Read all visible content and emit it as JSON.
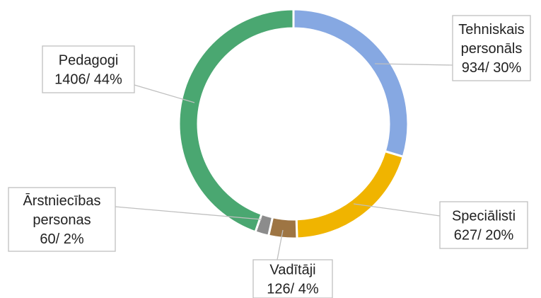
{
  "chart_data": {
    "type": "donut",
    "categories": [
      "Tehniskais personāls",
      "Speciālisti",
      "Vadītāji",
      "Ārstniecības personas",
      "Pedagogi"
    ],
    "values": [
      934,
      627,
      126,
      60,
      1406
    ],
    "value_labels": [
      "934/ 30%",
      "627/ 20%",
      "126/ 4%",
      "60/ 2%",
      "1406/ 44%"
    ],
    "colors": [
      "#86a8e2",
      "#f0b400",
      "#9e7543",
      "#8c8c8c",
      "#4aa771"
    ]
  }
}
